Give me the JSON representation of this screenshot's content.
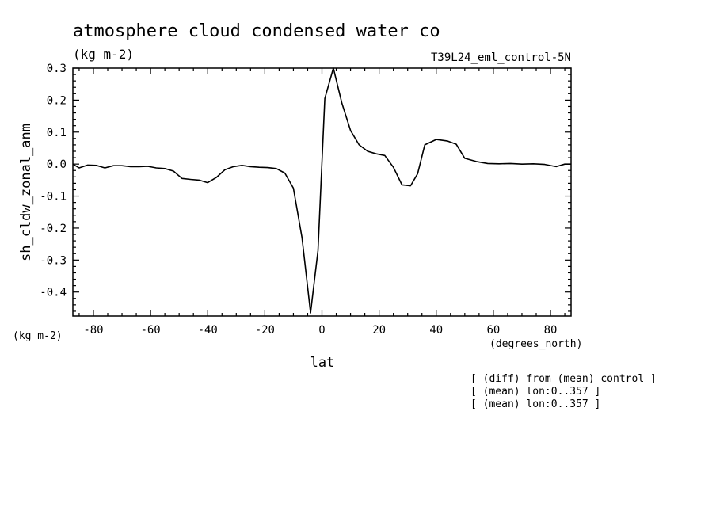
{
  "chart_data": {
    "type": "line",
    "title": "atmosphere cloud condensed water co",
    "units": "(kg m-2)",
    "run_label": "T39L24_eml_control-5N",
    "ylabel": "sh_cldw_zonal_anm",
    "y_units": "(kg m-2)",
    "xlabel": "lat",
    "x_units": "(degrees_north)",
    "xlim": [
      -87.2,
      87.2
    ],
    "ylim": [
      -0.475,
      0.3
    ],
    "x_ticks": [
      -80,
      -60,
      -40,
      -20,
      0,
      20,
      40,
      60,
      80
    ],
    "x_tick_labels": [
      "-80",
      "-60",
      "-40",
      "-20",
      "0",
      "20",
      "40",
      "60",
      "80"
    ],
    "y_ticks": [
      -0.4,
      -0.3,
      -0.2,
      -0.1,
      0.0,
      0.1,
      0.2,
      0.3
    ],
    "y_tick_labels": [
      "-0.4",
      "-0.3",
      "-0.2",
      "-0.1",
      "0.0",
      "0.1",
      "0.2",
      "0.3"
    ],
    "notes": [
      "[ (diff) from (mean) control ]",
      "[ (mean) lon:0..357 ]",
      "[ (mean) lon:0..357 ]"
    ],
    "grid": false,
    "series": [
      {
        "x": [
          -87.2,
          -85,
          -82,
          -79,
          -76,
          -73,
          -70,
          -67,
          -64,
          -61,
          -58,
          -55,
          -52,
          -49,
          -46,
          -43,
          -40,
          -37,
          -34,
          -31,
          -28,
          -25,
          -22,
          -19,
          -16,
          -13,
          -10,
          -7,
          -4,
          -1.4,
          1,
          4,
          7,
          10,
          13,
          16,
          19,
          22,
          25,
          28,
          31,
          33.5,
          36,
          40,
          44,
          47,
          50,
          54,
          58,
          62,
          66,
          70,
          74,
          78,
          82,
          85,
          87.2
        ],
        "y": [
          0.0,
          -0.012,
          -0.003,
          -0.004,
          -0.012,
          -0.005,
          -0.005,
          -0.008,
          -0.008,
          -0.007,
          -0.012,
          -0.014,
          -0.022,
          -0.045,
          -0.048,
          -0.05,
          -0.058,
          -0.042,
          -0.018,
          -0.008,
          -0.004,
          -0.008,
          -0.01,
          -0.011,
          -0.014,
          -0.028,
          -0.075,
          -0.23,
          -0.465,
          -0.27,
          0.205,
          0.3,
          0.19,
          0.105,
          0.06,
          0.04,
          0.032,
          0.027,
          -0.01,
          -0.065,
          -0.068,
          -0.03,
          0.06,
          0.077,
          0.072,
          0.062,
          0.018,
          0.008,
          0.002,
          0.001,
          0.002,
          0.0,
          0.001,
          -0.001,
          -0.008,
          0.0,
          0.0
        ]
      }
    ]
  }
}
